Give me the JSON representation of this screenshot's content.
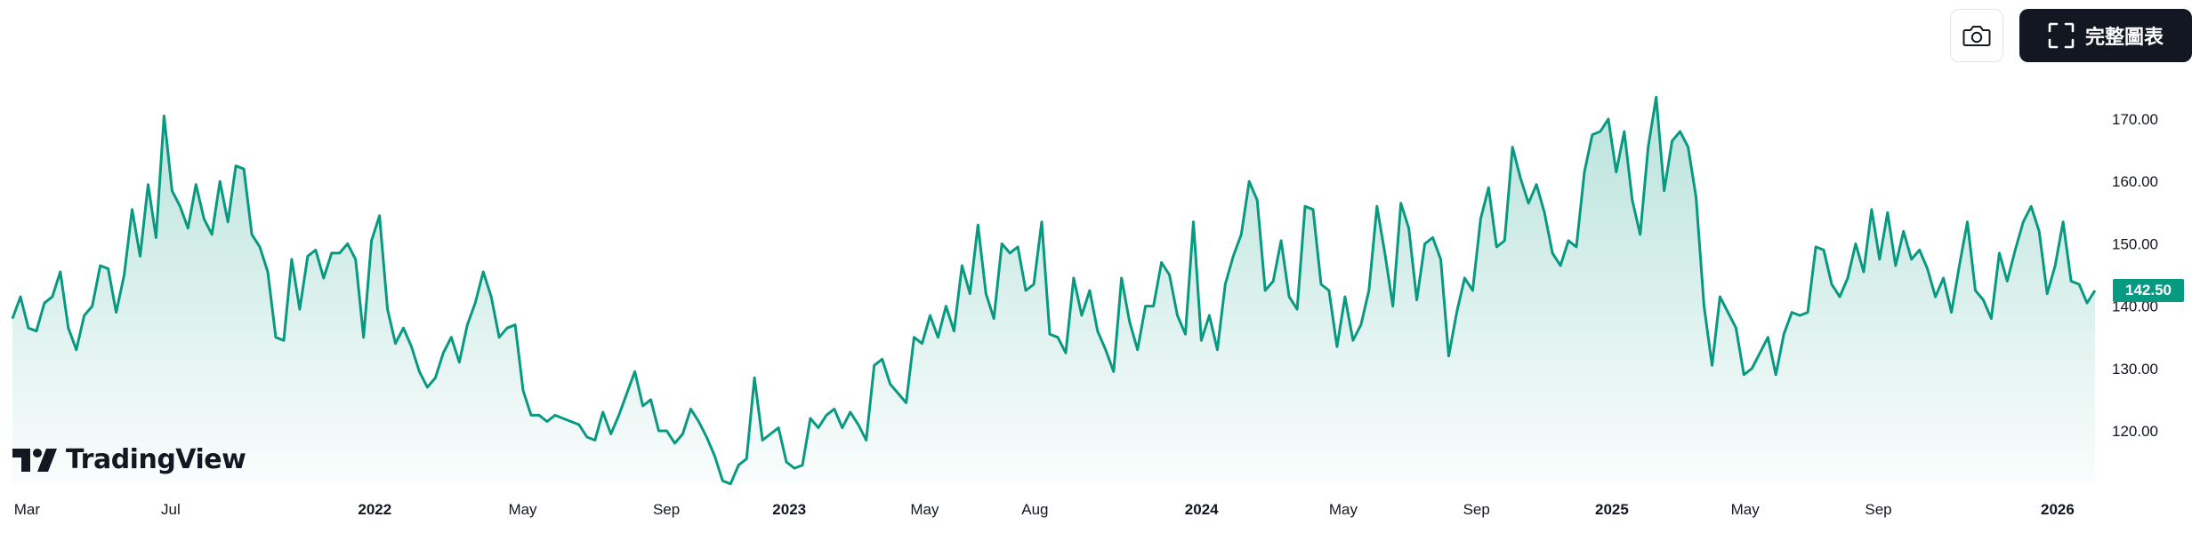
{
  "toolbar": {
    "snapshot_icon": "camera-icon",
    "fullscreen_icon": "fullscreen-corners-icon",
    "fullscreen_label": "完整圖表"
  },
  "brand": {
    "name": "TradingView"
  },
  "colors": {
    "line": "#089981",
    "fill_top": "#089981",
    "badge": "#089981",
    "button_dark": "#131722"
  },
  "chart_data": {
    "type": "area",
    "title": "",
    "xlabel": "",
    "ylabel": "",
    "grid": false,
    "ylim": [
      111,
      176
    ],
    "x_tick_labels": [
      "Mar",
      "Jul",
      "2022",
      "May",
      "Sep",
      "2023",
      "May",
      "Aug",
      "2024",
      "May",
      "Sep",
      "2025",
      "May",
      "Sep",
      "2026"
    ],
    "y_tick_labels": [
      "170.00",
      "160.00",
      "150.00",
      "140.00",
      "130.00",
      "120.00"
    ],
    "last_value_label": "142.50",
    "series": [
      {
        "values": [
          138.0,
          141.5,
          136.5,
          136.0,
          140.5,
          141.5,
          145.5,
          136.5,
          133.0,
          138.5,
          140.0,
          146.5,
          146.0,
          139.0,
          145.0,
          155.5,
          148.0,
          159.5,
          151.0,
          170.5,
          158.5,
          156.0,
          152.5,
          159.5,
          154.0,
          151.5,
          160.0,
          153.5,
          162.5,
          162.0,
          151.5,
          149.5,
          145.5,
          135.0,
          134.5,
          147.5,
          139.5,
          148.0,
          149.0,
          144.5,
          148.5,
          148.5,
          150.0,
          147.5,
          135.0,
          150.5,
          154.5,
          139.5,
          134.0,
          136.5,
          133.5,
          129.5,
          127.0,
          128.5,
          132.5,
          135.0,
          131.0,
          137.0,
          140.5,
          145.5,
          141.5,
          135.0,
          136.5,
          137.0,
          126.5,
          122.5,
          122.5,
          121.5,
          122.5,
          122.0,
          121.5,
          121.0,
          119.0,
          118.5,
          123.0,
          119.5,
          122.5,
          126.0,
          129.5,
          124.0,
          125.0,
          120.0,
          120.0,
          118.0,
          119.5,
          123.5,
          121.5,
          119.0,
          116.0,
          112.0,
          111.5,
          114.5,
          115.5,
          128.5,
          118.5,
          119.5,
          120.5,
          115.0,
          114.0,
          114.5,
          122.0,
          120.5,
          122.5,
          123.5,
          120.5,
          123.0,
          121.0,
          118.5,
          130.5,
          131.5,
          127.5,
          126.0,
          124.5,
          135.0,
          134.0,
          138.5,
          135.0,
          140.0,
          136.0,
          146.5,
          142.0,
          153.0,
          142.0,
          138.0,
          150.0,
          148.5,
          149.5,
          142.5,
          143.5,
          153.5,
          135.5,
          135.0,
          132.5,
          144.5,
          138.5,
          142.5,
          136.0,
          133.0,
          129.5,
          144.5,
          137.5,
          133.0,
          140.0,
          140.0,
          147.0,
          145.0,
          138.5,
          135.5,
          153.5,
          134.5,
          138.5,
          133.0,
          143.5,
          148.0,
          151.5,
          160.0,
          157.0,
          142.5,
          144.0,
          150.5,
          141.5,
          139.5,
          156.0,
          155.5,
          143.5,
          142.5,
          133.5,
          141.5,
          134.5,
          137.0,
          142.5,
          156.0,
          148.5,
          140.0,
          156.5,
          152.5,
          141.0,
          150.0,
          151.0,
          147.5,
          132.0,
          139.0,
          144.5,
          142.5,
          154.0,
          159.0,
          149.5,
          150.5,
          165.5,
          160.5,
          156.5,
          159.5,
          155.0,
          148.5,
          146.5,
          150.5,
          149.5,
          161.5,
          167.5,
          168.0,
          170.0,
          161.5,
          168.0,
          157.0,
          151.5,
          165.5,
          173.5,
          158.5,
          166.5,
          168.0,
          165.5,
          157.5,
          140.0,
          130.5,
          141.5,
          139.0,
          136.5,
          129.0,
          130.0,
          132.5,
          135.0,
          129.0,
          135.5,
          139.0,
          138.5,
          139.0,
          149.5,
          149.0,
          143.5,
          141.5,
          144.5,
          150.0,
          145.5,
          155.5,
          147.5,
          155.0,
          146.5,
          152.0,
          147.5,
          149.0,
          146.0,
          141.5,
          144.5,
          139.0,
          146.5,
          153.5,
          142.5,
          141.0,
          138.0,
          148.5,
          144.0,
          149.0,
          153.5,
          156.0,
          152.0,
          142.0,
          146.5,
          153.5,
          144.0,
          143.5,
          140.5,
          142.5
        ]
      }
    ]
  }
}
